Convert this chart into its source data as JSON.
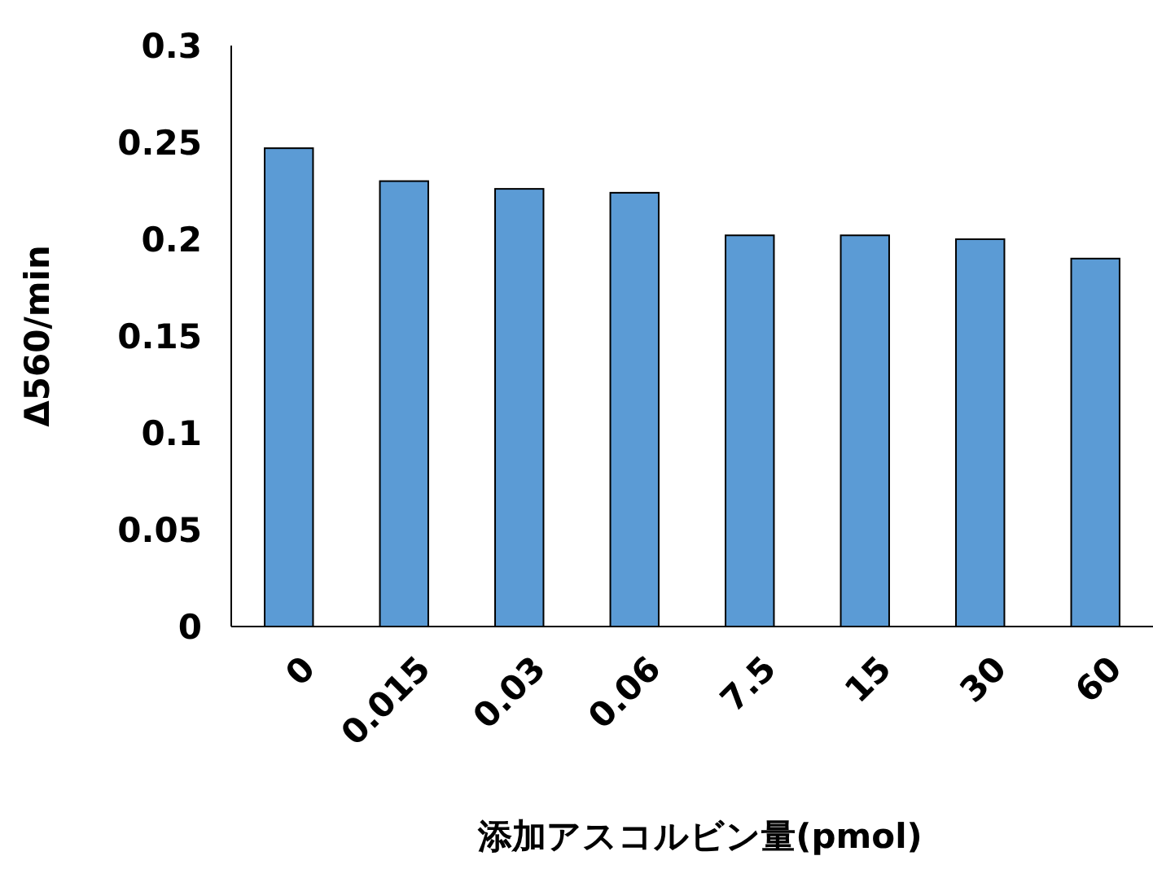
{
  "chart_data": {
    "type": "bar",
    "xlabel": "添加アスコルビン量(pmol)",
    "ylabel": "Δ560/min",
    "categories": [
      "0",
      "0.015",
      "0.03",
      "0.06",
      "7.5",
      "15",
      "30",
      "60"
    ],
    "values": [
      0.247,
      0.23,
      0.226,
      0.224,
      0.202,
      0.202,
      0.2,
      0.19
    ],
    "color": "#5b9bd5",
    "ylim": [
      0,
      0.3
    ],
    "yticks": [
      0,
      0.05,
      0.1,
      0.15,
      0.2,
      0.25,
      0.3
    ],
    "grid": false
  }
}
